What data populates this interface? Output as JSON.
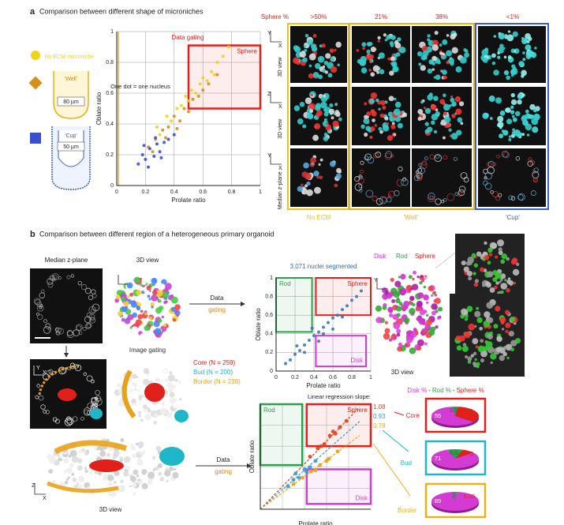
{
  "panel_a": {
    "letter": "a",
    "title": "Comparison between different shape of microniches",
    "well_label": "'Well'",
    "well_dimension": "80 µm",
    "cup_label": "'Cup'",
    "cup_dimension": "50 µm",
    "chart_data": {
      "type": "scatter",
      "title": "Data gating",
      "annotation": "One dot = one nucleus",
      "x_label": "Prolate ratio",
      "y_label": "Oblate ratio",
      "xlim": [
        0,
        1
      ],
      "ylim": [
        0,
        1
      ],
      "xticks": [
        0,
        0.2,
        0.4,
        0.6,
        0.8,
        1
      ],
      "yticks": [
        0,
        0.2,
        0.4,
        0.6,
        0.8,
        1
      ],
      "grid": true,
      "gates": [
        {
          "label": "Sphere",
          "color": "#e0201b",
          "x": [
            0.5,
            1
          ],
          "y": [
            0.5,
            0.91
          ]
        }
      ],
      "series": [
        {
          "name": "No ECM microniche",
          "color": "#f2d21b",
          "x": [
            0.28,
            0.35,
            0.42,
            0.48,
            0.52,
            0.55,
            0.6,
            0.63,
            0.66,
            0.7,
            0.74,
            0.78,
            0.45,
            0.38,
            0.58,
            0.68,
            0.3,
            0.5
          ],
          "y": [
            0.38,
            0.45,
            0.5,
            0.58,
            0.62,
            0.6,
            0.7,
            0.68,
            0.74,
            0.8,
            0.84,
            0.9,
            0.52,
            0.42,
            0.66,
            0.72,
            0.33,
            0.55
          ]
        },
        {
          "name": "'Well'",
          "color": "#d4901a",
          "x": [
            0.22,
            0.27,
            0.32,
            0.36,
            0.4,
            0.44,
            0.47,
            0.5,
            0.53,
            0.57,
            0.6,
            0.64,
            0.7,
            0.34,
            0.42,
            0.25
          ],
          "y": [
            0.25,
            0.3,
            0.36,
            0.38,
            0.45,
            0.42,
            0.5,
            0.48,
            0.56,
            0.58,
            0.62,
            0.66,
            0.72,
            0.31,
            0.37,
            0.22
          ]
        },
        {
          "name": "'Cup'",
          "color": "#3a4fd0",
          "x": [
            0.15,
            0.18,
            0.2,
            0.23,
            0.26,
            0.28,
            0.3,
            0.33,
            0.36,
            0.4,
            0.22,
            0.31,
            0.27,
            0.19
          ],
          "y": [
            0.14,
            0.2,
            0.17,
            0.24,
            0.19,
            0.27,
            0.22,
            0.28,
            0.3,
            0.33,
            0.12,
            0.18,
            0.31,
            0.26
          ]
        }
      ]
    },
    "images": {
      "header": "Sphere %",
      "columns": [
        ">50%",
        "21%",
        "38%",
        "<1%"
      ],
      "rows": [
        "3D view",
        "3D view",
        "Median z-plane"
      ],
      "row_axes": [
        [
          "Y",
          "X"
        ],
        [
          "Z",
          "X"
        ],
        [
          "Y",
          "X"
        ]
      ],
      "groups": [
        {
          "label": "No ECM",
          "color": "#f2c21b"
        },
        {
          "label": "'Well'",
          "color": "#e8b21a"
        },
        {
          "label": "'Cup'",
          "color": "#3a5fd0"
        }
      ]
    }
  },
  "panel_b": {
    "letter": "b",
    "title": "Comparison between different region of a heterogeneous primary organoid",
    "median_label": "Median z-plane",
    "view_label": "3D view",
    "view_axes": [
      "Y",
      "X"
    ],
    "image_caption": "Image gating",
    "arrow_label": [
      "Data",
      "gating"
    ],
    "regions": [
      {
        "label": "Core (N = 259)",
        "color": "#e0201b"
      },
      {
        "label": "Bud (N = 200)",
        "color": "#1fb6c8"
      },
      {
        "label": "Border (N = 238)",
        "color": "#e8a21a"
      }
    ],
    "bottom_caption": "3D view",
    "bottom_axes": [
      "Z",
      "X"
    ],
    "gating_chart": {
      "type": "scatter",
      "title": "3,071 nuclei segmented",
      "x_label": "Prolate ratio",
      "y_label": "Oblate ratio",
      "xlim": [
        0,
        1
      ],
      "ylim": [
        0,
        1
      ],
      "xticks": [
        0,
        0.2,
        0.4,
        0.6,
        0.8,
        1
      ],
      "yticks": [
        0,
        0.2,
        0.4,
        0.6,
        0.8,
        1
      ],
      "grid": true,
      "gates": [
        {
          "label": "Rod",
          "color": "#2e9e4e",
          "x": [
            0,
            0.38
          ],
          "y": [
            0.42,
            1
          ]
        },
        {
          "label": "Sphere",
          "color": "#e0201b",
          "x": [
            0.42,
            1
          ],
          "y": [
            0.6,
            1
          ]
        },
        {
          "label": "Disk",
          "color": "#d43bd4",
          "x": [
            0.42,
            0.95
          ],
          "y": [
            0.05,
            0.38
          ]
        }
      ],
      "series": [
        {
          "color": "#3a78b8",
          "x": [
            0.1,
            0.15,
            0.2,
            0.25,
            0.3,
            0.35,
            0.4,
            0.45,
            0.5,
            0.55,
            0.6,
            0.65,
            0.7,
            0.75,
            0.8,
            0.85,
            0.9,
            0.3,
            0.45,
            0.6,
            0.22,
            0.5,
            0.7,
            0.38
          ],
          "y": [
            0.08,
            0.12,
            0.18,
            0.22,
            0.28,
            0.33,
            0.38,
            0.42,
            0.47,
            0.52,
            0.57,
            0.6,
            0.66,
            0.7,
            0.76,
            0.8,
            0.86,
            0.2,
            0.32,
            0.45,
            0.27,
            0.4,
            0.58,
            0.46
          ]
        }
      ]
    },
    "organoid": {
      "legend": [
        {
          "label": "Disk",
          "color": "#d43bd4"
        },
        {
          "label": "Rod",
          "color": "#2e9e4e"
        },
        {
          "label": "Sphere",
          "color": "#e0201b"
        }
      ],
      "axes": [
        "Y",
        "X"
      ],
      "caption": "3D view"
    },
    "regression_chart": {
      "type": "scatter",
      "x_label": "Prolate ratio",
      "y_label": "Oblate ratio",
      "slope_title": "Linear regression slope:",
      "xlim": [
        0,
        1
      ],
      "ylim": [
        0,
        1
      ],
      "grid": true,
      "gates": [
        {
          "label": "Rod",
          "color": "#2e9e4e",
          "x": [
            0,
            0.38
          ],
          "y": [
            0.42,
            1
          ]
        },
        {
          "label": "Sphere",
          "color": "#e0201b",
          "x": [
            0.42,
            1
          ],
          "y": [
            0.6,
            1
          ]
        },
        {
          "label": "Disk",
          "color": "#d43bd4",
          "x": [
            0.42,
            1
          ],
          "y": [
            0.05,
            0.38
          ]
        }
      ],
      "series": [
        {
          "color": "#e0401b",
          "slope": 1.08,
          "x": [
            0.45,
            0.52,
            0.58,
            0.63,
            0.68,
            0.72,
            0.78,
            0.55,
            0.66
          ],
          "y": [
            0.5,
            0.58,
            0.62,
            0.7,
            0.72,
            0.78,
            0.84,
            0.6,
            0.74
          ]
        },
        {
          "color": "#3a9ad0",
          "slope": 0.93,
          "x": [
            0.25,
            0.3,
            0.35,
            0.4,
            0.45,
            0.5,
            0.32,
            0.42
          ],
          "y": [
            0.22,
            0.28,
            0.3,
            0.38,
            0.4,
            0.46,
            0.34,
            0.36
          ]
        },
        {
          "color": "#e8a21a",
          "slope": 0.78,
          "x": [
            0.3,
            0.38,
            0.46,
            0.54,
            0.62,
            0.7,
            0.5,
            0.6
          ],
          "y": [
            0.24,
            0.3,
            0.36,
            0.42,
            0.48,
            0.55,
            0.37,
            0.46
          ]
        }
      ]
    },
    "pies": {
      "header": [
        "Disk %",
        "Rod %",
        "Sphere %"
      ],
      "separator": "-",
      "colors": [
        "#d43bd4",
        "#2e9e4e",
        "#e0201b"
      ],
      "items": [
        {
          "label": "Core",
          "color": "#e0201b",
          "values": [
            55,
            3.5,
            30
          ]
        },
        {
          "label": "Bud",
          "color": "#1fb6c8",
          "values": [
            71,
            9.5,
            7.5
          ]
        },
        {
          "label": "Border",
          "color": "#e8b21a",
          "values": [
            89,
            2,
            0.05
          ]
        }
      ]
    }
  }
}
